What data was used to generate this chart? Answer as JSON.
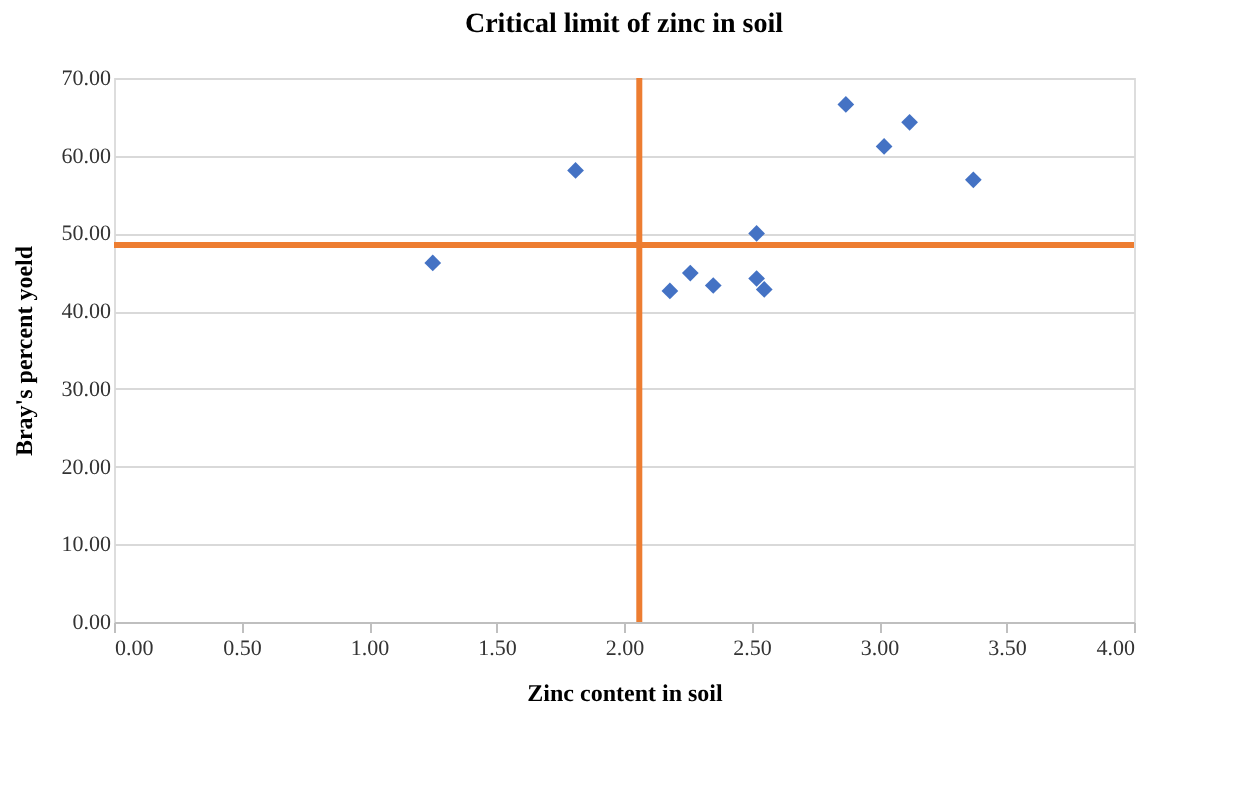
{
  "chart_data": {
    "type": "scatter",
    "title": "Critical limit of zinc in soil",
    "xlabel": "Zinc content in soil",
    "ylabel": "Bray's percent yoeld",
    "x": [
      1.25,
      1.81,
      2.52,
      2.18,
      2.26,
      2.35,
      2.52,
      2.55,
      2.87,
      3.02,
      3.12,
      3.37
    ],
    "series": [
      {
        "color": "#4472c4",
        "values": [
          46.2,
          58.1,
          50.0,
          42.6,
          44.9,
          43.3,
          44.2,
          42.8,
          66.6,
          61.2,
          64.3,
          56.9
        ]
      }
    ],
    "marker": "diamond",
    "grid": "y",
    "xlim": [
      0,
      4
    ],
    "xticks": [
      {
        "value": 0,
        "label": "0.00"
      },
      {
        "value": 0.5,
        "label": "0.50"
      },
      {
        "value": 1,
        "label": "1.00"
      },
      {
        "value": 1.5,
        "label": "1.50"
      },
      {
        "value": 2,
        "label": "2.00"
      },
      {
        "value": 2.5,
        "label": "2.50"
      },
      {
        "value": 3,
        "label": "3.00"
      },
      {
        "value": 3.5,
        "label": "3.50"
      },
      {
        "value": 4,
        "label": "4.00"
      }
    ],
    "ylim": [
      0,
      70
    ],
    "yticks": [
      {
        "value": 0,
        "label": "0.00"
      },
      {
        "value": 10,
        "label": "10.00"
      },
      {
        "value": 20,
        "label": "20.00"
      },
      {
        "value": 30,
        "label": "30.00"
      },
      {
        "value": 40,
        "label": "40.00"
      },
      {
        "value": 50,
        "label": "50.00"
      },
      {
        "value": 60,
        "label": "60.00"
      },
      {
        "value": 70,
        "label": "70.00"
      }
    ],
    "ref_lines": [
      {
        "axis": "x",
        "value": 2.06,
        "color": "#ed7d31"
      },
      {
        "axis": "y",
        "value": 48.5,
        "color": "#ed7d31"
      }
    ]
  }
}
